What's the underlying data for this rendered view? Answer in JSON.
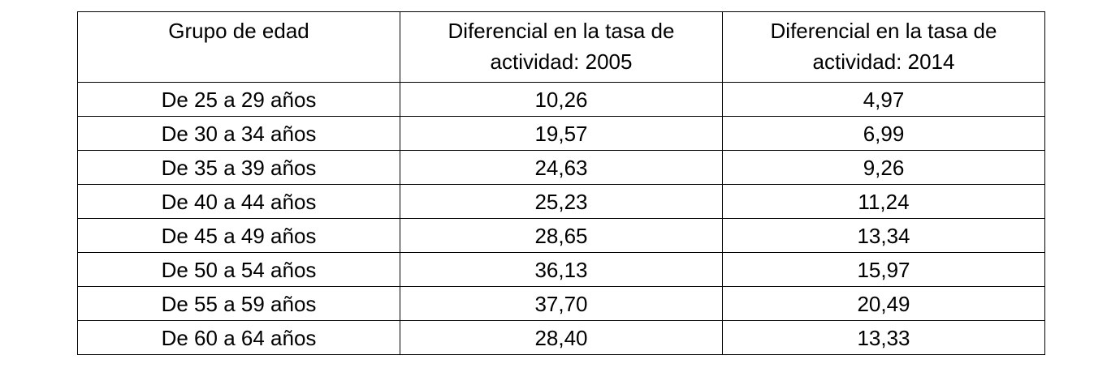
{
  "table": {
    "header": [
      "Grupo de edad",
      "Diferencial en la tasa de actividad: 2005",
      "Diferencial en la tasa de actividad: 2014"
    ],
    "rows": [
      [
        "De 25 a 29 años",
        "10,26",
        "4,97"
      ],
      [
        "De 30 a 34 años",
        "19,57",
        "6,99"
      ],
      [
        "De 35 a 39 años",
        "24,63",
        "9,26"
      ],
      [
        "De 40 a 44 años",
        "25,23",
        "11,24"
      ],
      [
        "De 45 a 49 años",
        "28,65",
        "13,34"
      ],
      [
        "De 50 a 54 años",
        "36,13",
        "15,97"
      ],
      [
        "De 55 a 59 años",
        "37,70",
        "20,49"
      ],
      [
        "De 60 a 64 años",
        "28,40",
        "13,33"
      ]
    ]
  }
}
